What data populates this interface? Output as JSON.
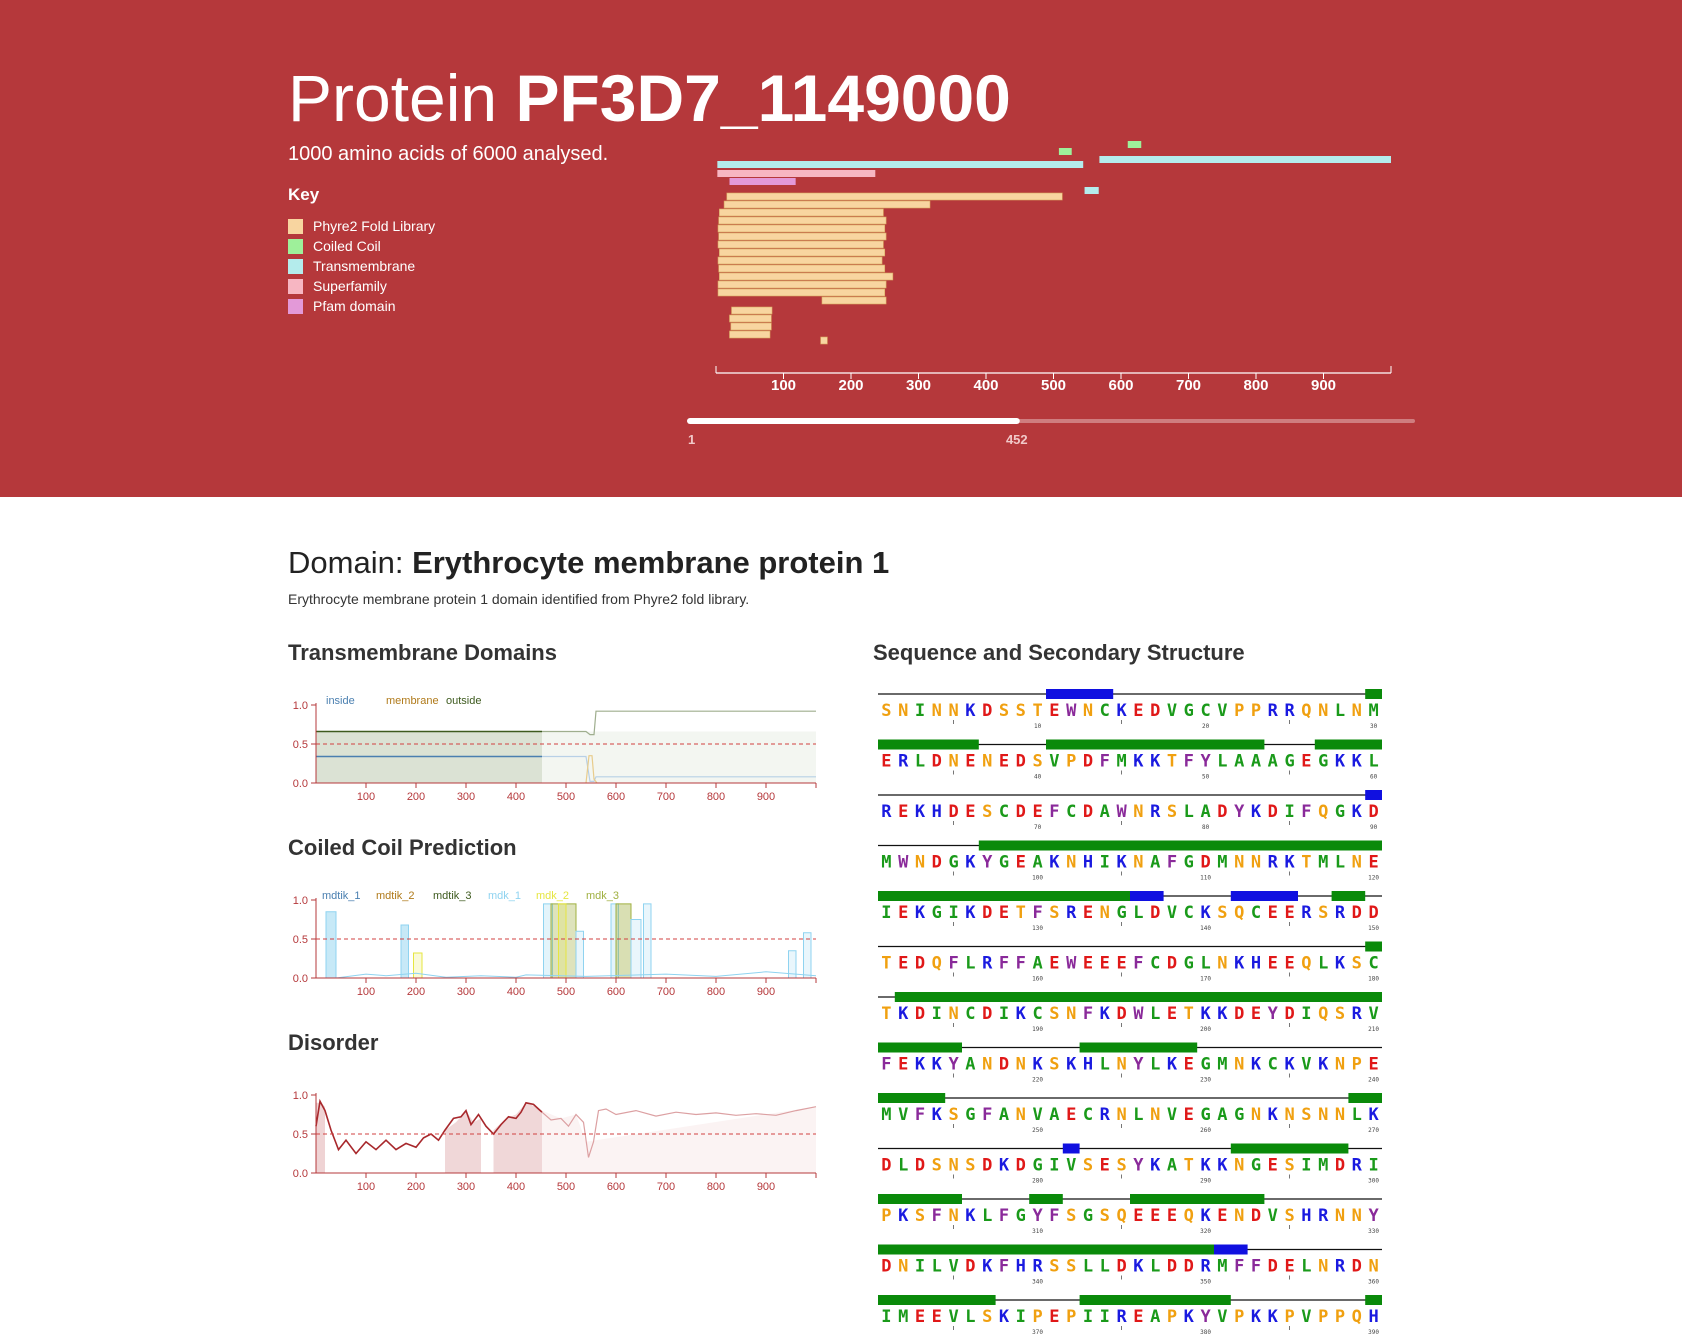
{
  "header": {
    "title_light": "Protein",
    "title_bold": "PF3D7_1149000",
    "subtitle": "1000 amino acids of 6000 analysed.",
    "key_title": "Key",
    "key": [
      {
        "label": "Phyre2 Fold Library",
        "color": "#f8d5a0"
      },
      {
        "label": "Coiled Coil",
        "color": "#9ef09a"
      },
      {
        "label": "Transmembrane",
        "color": "#b4ecec"
      },
      {
        "label": "Superfamily",
        "color": "#f7b6c2"
      },
      {
        "label": "Pfam domain",
        "color": "#e399d8"
      }
    ],
    "axis_ticks": [
      "100",
      "200",
      "300",
      "400",
      "500",
      "600",
      "700",
      "800",
      "900"
    ],
    "slider": {
      "min_label": "1",
      "value_label": "452",
      "value": 452,
      "max": 1000
    }
  },
  "domain": {
    "title_light": "Domain:",
    "title_bold": "Erythrocyte membrane protein 1",
    "description": "Erythrocyte membrane protein 1 domain identified from Phyre2 fold library."
  },
  "sections": {
    "transmembrane": "Transmembrane Domains",
    "coiled": "Coiled Coil Prediction",
    "disorder": "Disorder",
    "sequence": "Sequence and Secondary Structure"
  },
  "plots": {
    "y_ticks": [
      "1.0",
      "0.5",
      "0.0"
    ],
    "x_ticks": [
      "100",
      "200",
      "300",
      "400",
      "500",
      "600",
      "700",
      "800",
      "900"
    ],
    "tm_legend": [
      {
        "label": "inside",
        "color": "#4a7fb0"
      },
      {
        "label": "membrane",
        "color": "#b07a1a"
      },
      {
        "label": "outside",
        "color": "#3d5a1e"
      }
    ],
    "cc_legend": [
      {
        "label": "mdtik_1",
        "color": "#4a7fb0"
      },
      {
        "label": "mdtik_2",
        "color": "#b07a1a"
      },
      {
        "label": "mdtik_3",
        "color": "#3d5a1e"
      },
      {
        "label": "mdk_1",
        "color": "#8fd3f0"
      },
      {
        "label": "mdk_2",
        "color": "#e6e640"
      },
      {
        "label": "mdk_3",
        "color": "#a0b040"
      }
    ]
  },
  "sequence": {
    "rows": [
      "SNINNKDSSTEWNCKEDVGCVPPRRQNLNM",
      "ERLDNENEDSVPDFMKKTFYLAAAGEGKKL",
      "REKHDESCDEFCDAWNRSLADYKDIFQGKD",
      "MWNDGKYGEAKNHIKNAFGDMNNRKTMLNE",
      "IEKGIKDETFSRENGLDVCKSQCEERSRDD",
      "TEDQFLRFFAEWEEEFCDGLNKHEEQLKSC",
      "TKDINCDIKCSNFKDWLETKKDEYDIQSRV",
      "FEKKYANDNKSKHLNYLKEGMNKCKVKNPE",
      "MVFKSGFANVAECRNLNVEGAGNKNSNNLK",
      "DLDSNSDKDGIVSESYKATKKNGESIMDRI",
      "PKSFNKLFGYFSGSQEEEQKENDVSHRNNY",
      "DNILVDKFHRSSLLDKLDDRMFFDELNRDN",
      "IMEEVLSKIPEPIIREAPKYVPKKPVPPQH"
    ],
    "structure": [
      "CCCCCCCCCCHHHHCCCCCCCCCCCCCCCE",
      "EEEEEECCCCEEEEEEEEEEEEECCCEEEE",
      "CCCCCCCCCCCCCCCCCCCCCCCCCCCCCH",
      "CCCCCCEEEEEEEEEEEEEEEEEEEEEEEE",
      "EEEEEEEEEEEEEEEHHCCCCHHHHCCEEC",
      "CCCCCCCCCCCCCCCCCCCCCCCCCCCCCE",
      "CEEEEEEEEEEEEEEEEEEEEEEEEEEEEE",
      "EEEEECCCCCCCEEEEEEECCCCCCCCCCC",
      "EEEECCCCCCCCCCCCCCCCCCCCCCCCEE",
      "CCCCCCCCCCCHCCCCCCCCCEEEEEEECC",
      "EEEEECCCCEECCCCEEEEEEEECCCCCCC",
      "EEEEEEEEEEEEEEEEEEEEHHCCCCCCCC",
      "EEEEEEECCCCCEEEEEEEEECCCCCCCCE"
    ],
    "residue_colors": {
      "hydrophobic": "#1a9a1a",
      "acidic": "#e01818",
      "basic": "#1a1ae0",
      "polar": "#f0a010",
      "aromatic": "#8a2a9a"
    },
    "helix_color": "#0a8a0a",
    "strand_color": "#1010e0"
  }
}
